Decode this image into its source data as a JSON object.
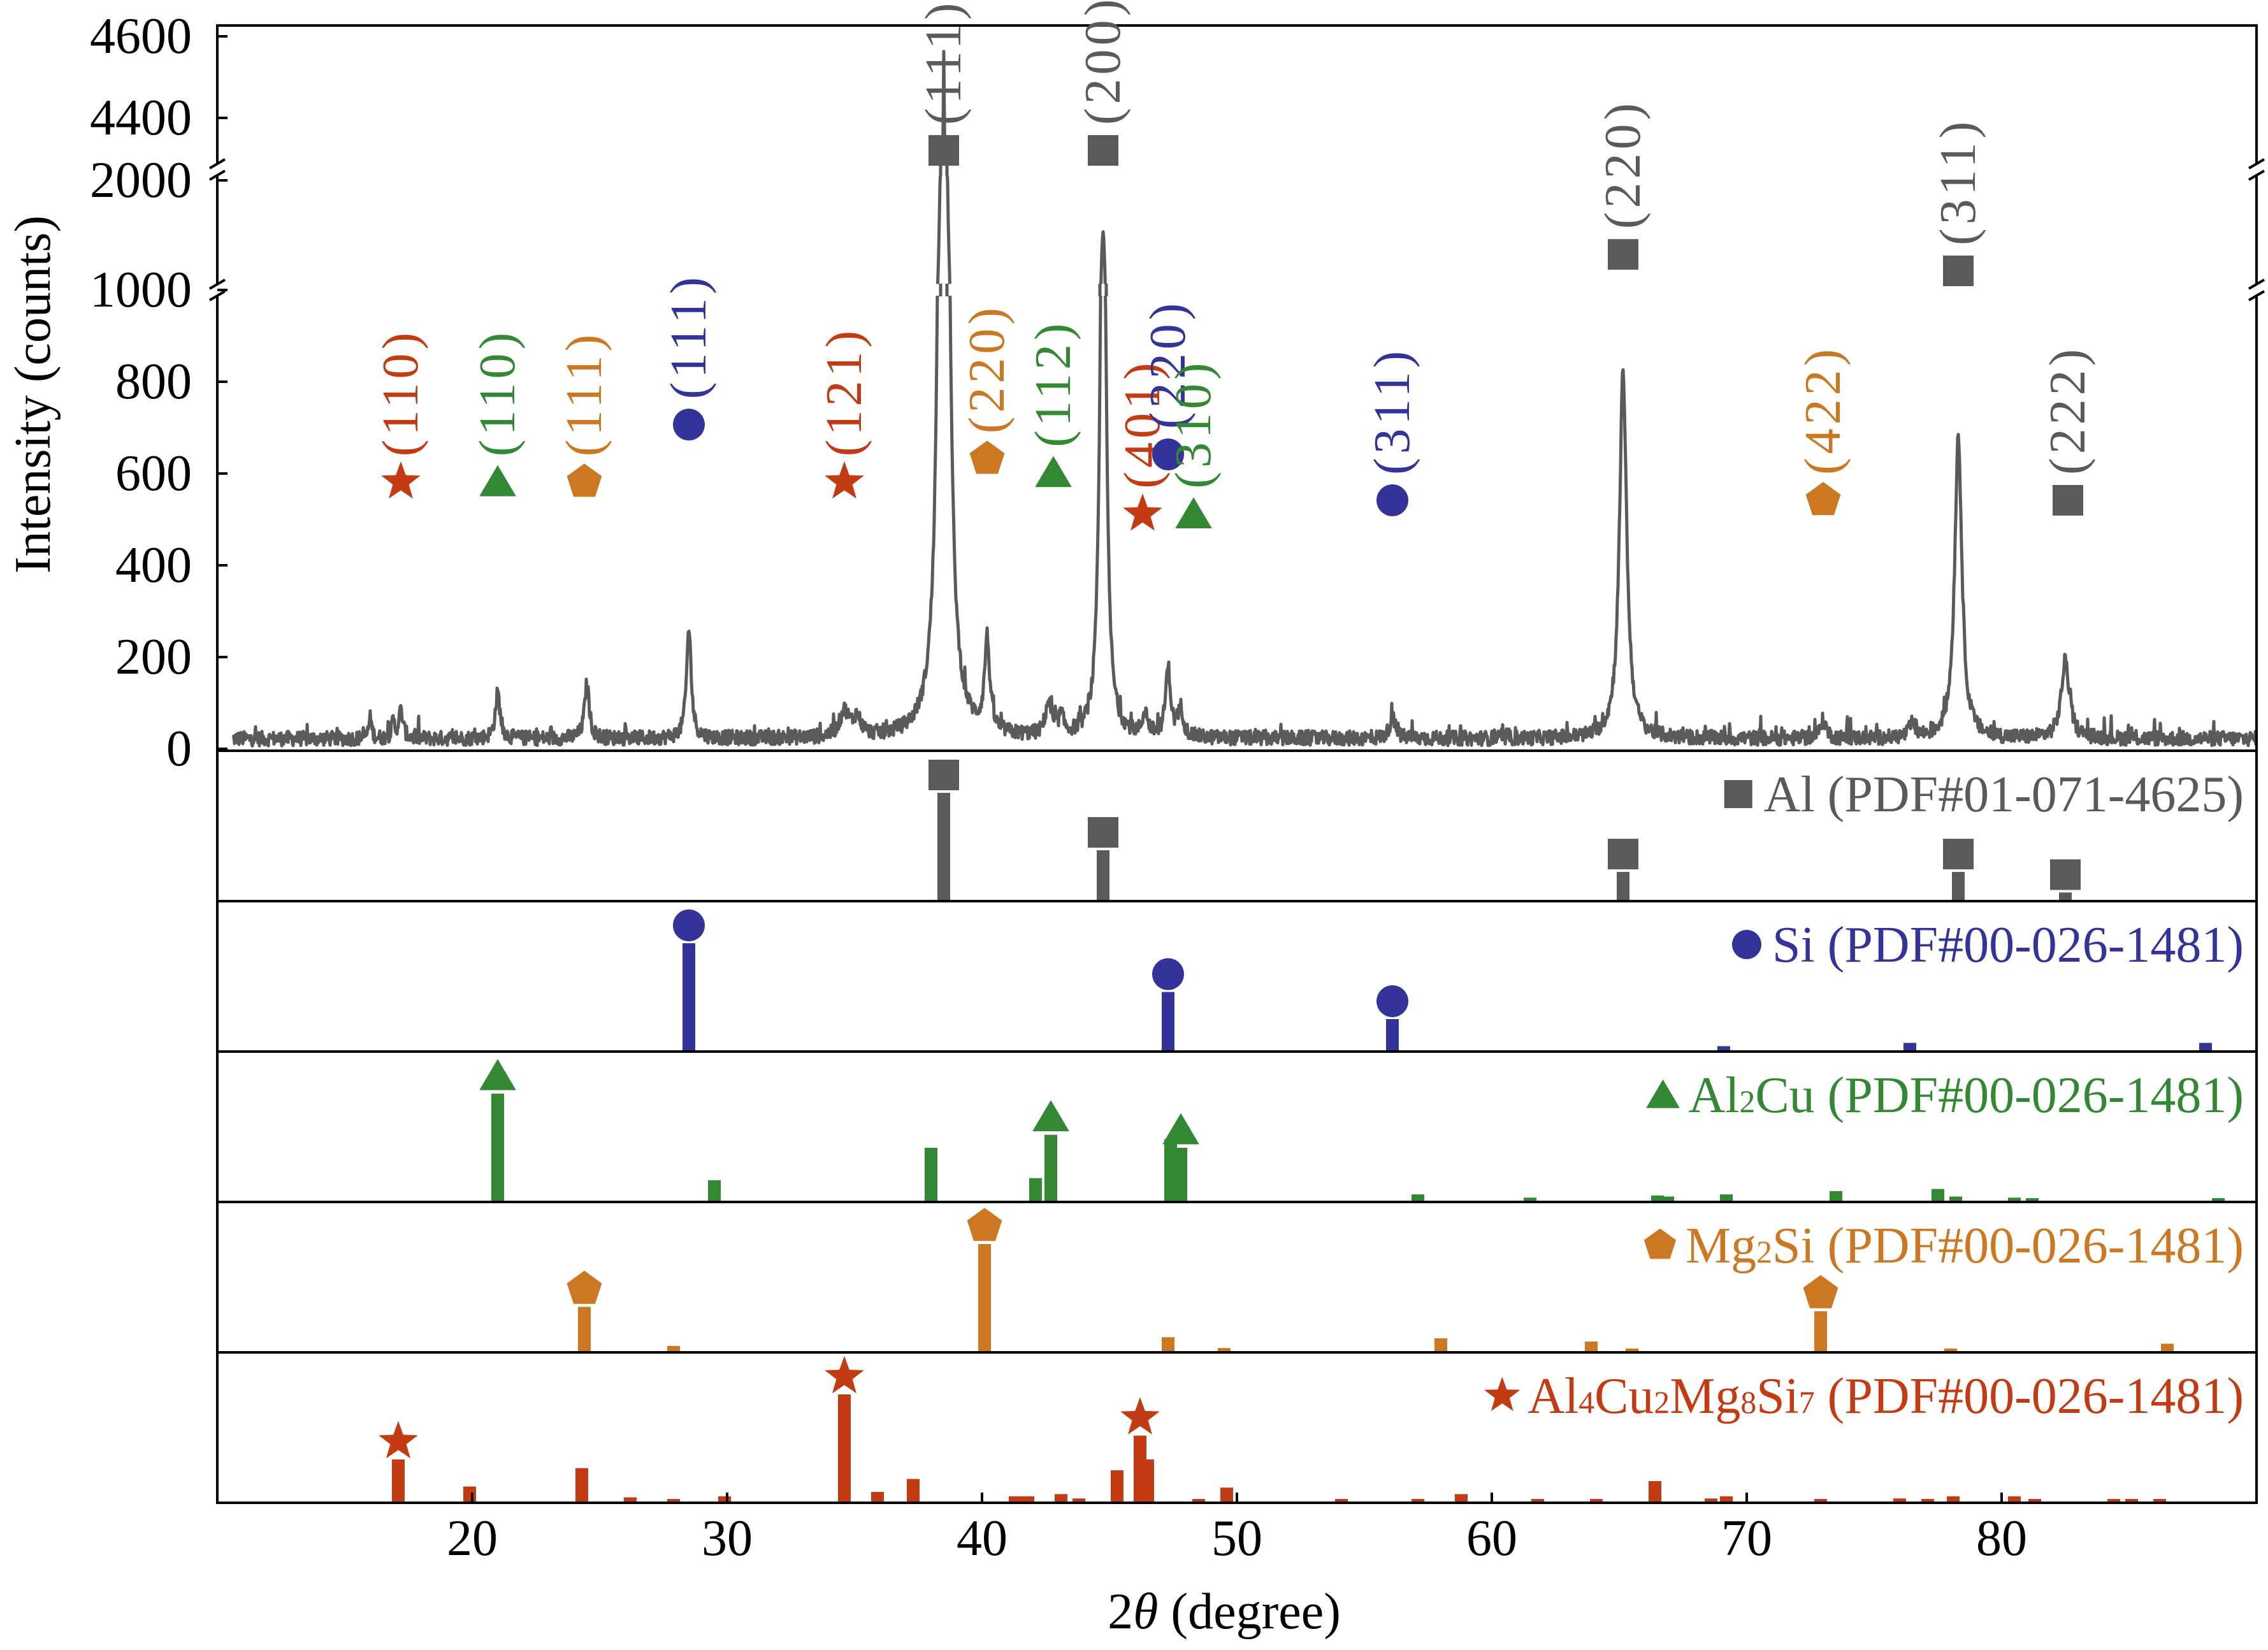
{
  "colors": {
    "Al": "#5a5a5a",
    "Si": "#333399",
    "Al2Cu": "#338833",
    "Mg2Si": "#cc7722",
    "Q": "#c23b12",
    "frame": "#000000"
  },
  "chart_data": {
    "type": "line",
    "title": "",
    "xlabel_prefix": "2",
    "xlabel_theta": "θ",
    "xlabel_suffix": " (degree)",
    "ylabel": "Intensity (counts)",
    "xlim": [
      10,
      90
    ],
    "x_ticks": [
      "20",
      "30",
      "40",
      "50",
      "60",
      "70",
      "80"
    ],
    "y_axis_broken": true,
    "y_segments": [
      {
        "range": [
          0,
          1000
        ],
        "ticks": [
          "0",
          "200",
          "400",
          "600",
          "800",
          "1000"
        ]
      },
      {
        "range": [
          1000,
          2000
        ],
        "ticks": [
          "2000"
        ]
      },
      {
        "range": [
          4300,
          4600
        ],
        "ticks": [
          "4400",
          "4600"
        ]
      }
    ],
    "series": [
      {
        "name": "",
        "peaks": [
          {
            "x": 16.0,
            "y": 45,
            "w": 0.07
          },
          {
            "x": 16.9,
            "y": 35,
            "w": 0.07
          },
          {
            "x": 17.2,
            "y": 60,
            "w": 0.1
          },
          {
            "x": 21.0,
            "y": 100,
            "w": 0.11
          },
          {
            "x": 24.5,
            "y": 120,
            "w": 0.11
          },
          {
            "x": 28.5,
            "y": 240,
            "w": 0.11
          },
          {
            "x": 34.6,
            "y": 55,
            "w": 0.22
          },
          {
            "x": 35.1,
            "y": 40,
            "w": 0.18
          },
          {
            "x": 38.5,
            "y": 4540,
            "w": 0.13
          },
          {
            "x": 40.2,
            "y": 200,
            "w": 0.12
          },
          {
            "x": 42.6,
            "y": 70,
            "w": 0.14
          },
          {
            "x": 43.1,
            "y": 40,
            "w": 0.12
          },
          {
            "x": 44.75,
            "y": 1500,
            "w": 0.13
          },
          {
            "x": 46.4,
            "y": 50,
            "w": 0.12
          },
          {
            "x": 47.3,
            "y": 150,
            "w": 0.12
          },
          {
            "x": 47.8,
            "y": 60,
            "w": 0.12
          },
          {
            "x": 56.1,
            "y": 45,
            "w": 0.14
          },
          {
            "x": 65.15,
            "y": 800,
            "w": 0.17
          },
          {
            "x": 73.0,
            "y": 40,
            "w": 0.14
          },
          {
            "x": 76.5,
            "y": 30,
            "w": 0.14
          },
          {
            "x": 78.3,
            "y": 660,
            "w": 0.17
          },
          {
            "x": 82.5,
            "y": 170,
            "w": 0.19
          }
        ],
        "baseline": 22,
        "noise": 16
      }
    ],
    "peak_annotations": [
      {
        "x": 17.2,
        "phase": "Q",
        "hkl": "(110)",
        "label_y": 540
      },
      {
        "x": 21.0,
        "phase": "Al2Cu",
        "hkl": "(110)",
        "label_y": 540
      },
      {
        "x": 24.4,
        "phase": "Mg2Si",
        "hkl": "(111)",
        "label_y": 540
      },
      {
        "x": 28.5,
        "phase": "Si",
        "hkl": "(111)",
        "label_y": 665
      },
      {
        "x": 34.6,
        "phase": "Q",
        "hkl": "(121)",
        "label_y": 540
      },
      {
        "x": 38.5,
        "phase": "Al",
        "hkl": "(111)",
        "label_y": 3100
      },
      {
        "x": 40.2,
        "phase": "Mg2Si",
        "hkl": "(220)",
        "label_y": 590
      },
      {
        "x": 42.8,
        "phase": "Al2Cu",
        "hkl": "(112)",
        "label_y": 560
      },
      {
        "x": 44.75,
        "phase": "Al",
        "hkl": "(200)",
        "label_y": 2600
      },
      {
        "x": 46.3,
        "phase": "Q",
        "hkl": "(401)",
        "label_y": 470
      },
      {
        "x": 47.3,
        "phase": "Si",
        "hkl": "(220)",
        "label_y": 600
      },
      {
        "x": 48.3,
        "phase": "Al2Cu",
        "hkl": "(310)",
        "label_y": 470
      },
      {
        "x": 56.1,
        "phase": "Si",
        "hkl": "(311)",
        "label_y": 500
      },
      {
        "x": 65.15,
        "phase": "Al",
        "hkl": "(220)",
        "label_y": 1150
      },
      {
        "x": 73.0,
        "phase": "Mg2Si",
        "hkl": "(422)",
        "label_y": 500
      },
      {
        "x": 78.3,
        "phase": "Al",
        "hkl": "(311)",
        "label_y": 1000
      },
      {
        "x": 82.6,
        "phase": "Al",
        "hkl": "(222)",
        "label_y": 500
      }
    ],
    "reference_panels": [
      {
        "phase": "Al",
        "label_parts": [
          {
            "t": "Al "
          },
          {
            "t": "(PDF#01-071-4625)"
          }
        ],
        "lines": [
          [
            38.5,
            100
          ],
          [
            44.75,
            47
          ],
          [
            65.15,
            27
          ],
          [
            78.3,
            27
          ],
          [
            82.5,
            8
          ]
        ],
        "markers": [
          38.5,
          44.75,
          65.15,
          78.3,
          82.5
        ]
      },
      {
        "phase": "Si",
        "label_parts": [
          {
            "t": "Si "
          },
          {
            "t": "(PDF#00-026-1481)"
          }
        ],
        "lines": [
          [
            28.5,
            100
          ],
          [
            47.3,
            55
          ],
          [
            56.1,
            30
          ],
          [
            69.1,
            5
          ],
          [
            76.4,
            8
          ],
          [
            88.0,
            8
          ]
        ],
        "markers": [
          28.5,
          47.3,
          56.1
        ]
      },
      {
        "phase": "Al2Cu",
        "label_parts": [
          {
            "t": "Al"
          },
          {
            "t": "2",
            "sub": true
          },
          {
            "t": "Cu (PDF#00-026-1481)"
          }
        ],
        "lines": [
          [
            21.0,
            100
          ],
          [
            29.5,
            20
          ],
          [
            38.0,
            50
          ],
          [
            42.1,
            22
          ],
          [
            42.7,
            62
          ],
          [
            47.4,
            58
          ],
          [
            47.8,
            50
          ],
          [
            57.1,
            7
          ],
          [
            61.5,
            4
          ],
          [
            66.5,
            6
          ],
          [
            66.9,
            5
          ],
          [
            69.2,
            7
          ],
          [
            73.5,
            10
          ],
          [
            77.5,
            12
          ],
          [
            78.2,
            5
          ],
          [
            80.5,
            4
          ],
          [
            81.2,
            3
          ],
          [
            88.5,
            3
          ]
        ],
        "markers": [
          21.0,
          42.7,
          47.8
        ]
      },
      {
        "phase": "Mg2Si",
        "label_parts": [
          {
            "t": "Mg"
          },
          {
            "t": "2",
            "sub": true
          },
          {
            "t": "Si (PDF#00-026-1481)"
          }
        ],
        "lines": [
          [
            24.4,
            42
          ],
          [
            27.9,
            6
          ],
          [
            40.1,
            100
          ],
          [
            47.3,
            14
          ],
          [
            49.5,
            4
          ],
          [
            58.0,
            13
          ],
          [
            63.9,
            10
          ],
          [
            65.5,
            3
          ],
          [
            72.9,
            38
          ],
          [
            78.0,
            3
          ],
          [
            86.5,
            8
          ]
        ],
        "markers": [
          24.4,
          40.1,
          72.9
        ]
      },
      {
        "phase": "Q",
        "label_parts": [
          {
            "t": "Al"
          },
          {
            "t": "4",
            "sub": true
          },
          {
            "t": "Cu"
          },
          {
            "t": "2",
            "sub": true
          },
          {
            "t": "Mg"
          },
          {
            "t": "8",
            "sub": true
          },
          {
            "t": "Si"
          },
          {
            "t": "7",
            "sub": true
          },
          {
            "t": " (PDF#00-026-1481)"
          }
        ],
        "lines": [
          [
            17.1,
            40
          ],
          [
            19.9,
            15
          ],
          [
            24.3,
            32
          ],
          [
            26.2,
            5
          ],
          [
            27.9,
            3
          ],
          [
            29.9,
            6
          ],
          [
            34.6,
            100
          ],
          [
            35.9,
            10
          ],
          [
            37.3,
            22
          ],
          [
            41.3,
            6
          ],
          [
            41.8,
            6
          ],
          [
            43.1,
            8
          ],
          [
            43.8,
            4
          ],
          [
            45.3,
            30
          ],
          [
            46.2,
            62
          ],
          [
            46.5,
            40
          ],
          [
            48.5,
            3
          ],
          [
            49.6,
            14
          ],
          [
            54.1,
            3
          ],
          [
            57.1,
            3
          ],
          [
            58.8,
            8
          ],
          [
            61.8,
            3
          ],
          [
            64.1,
            3
          ],
          [
            66.4,
            20
          ],
          [
            68.6,
            4
          ],
          [
            69.2,
            6
          ],
          [
            72.9,
            3
          ],
          [
            76.0,
            4
          ],
          [
            77.1,
            3
          ],
          [
            78.1,
            6
          ],
          [
            80.5,
            6
          ],
          [
            81.3,
            3
          ],
          [
            84.4,
            3
          ],
          [
            85.1,
            3
          ],
          [
            86.2,
            3
          ]
        ],
        "markers": [
          17.1,
          34.6,
          46.2
        ]
      }
    ]
  }
}
